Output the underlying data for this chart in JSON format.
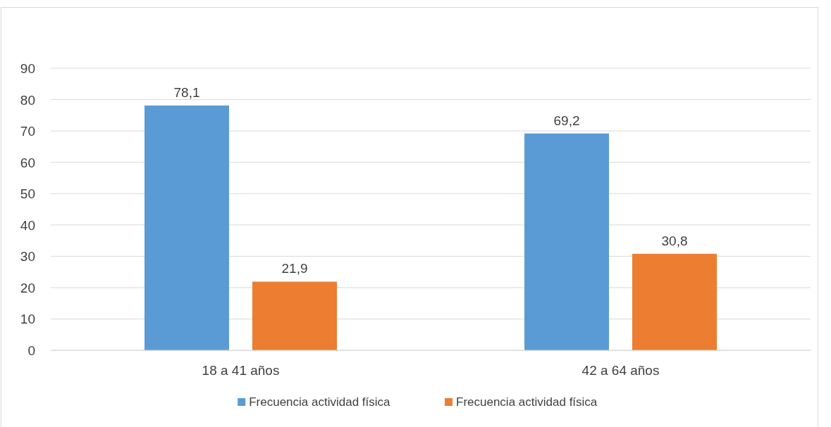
{
  "chart_data": {
    "type": "bar",
    "categories": [
      "18 a 41 años",
      "42 a 64 años"
    ],
    "series": [
      {
        "name": "Frecuencia actividad física",
        "color": "#5b9bd5",
        "values": [
          78.1,
          69.2
        ],
        "value_labels": [
          "78,1",
          "69,2"
        ]
      },
      {
        "name": "Frecuencia actividad física",
        "color": "#ed7d31",
        "values": [
          21.9,
          30.8
        ],
        "value_labels": [
          "21,9",
          "30,8"
        ]
      }
    ],
    "ylim": [
      0,
      90
    ],
    "yticks": [
      0,
      10,
      20,
      30,
      40,
      50,
      60,
      70,
      80,
      90
    ],
    "grid": "y",
    "legend": "bottom"
  }
}
